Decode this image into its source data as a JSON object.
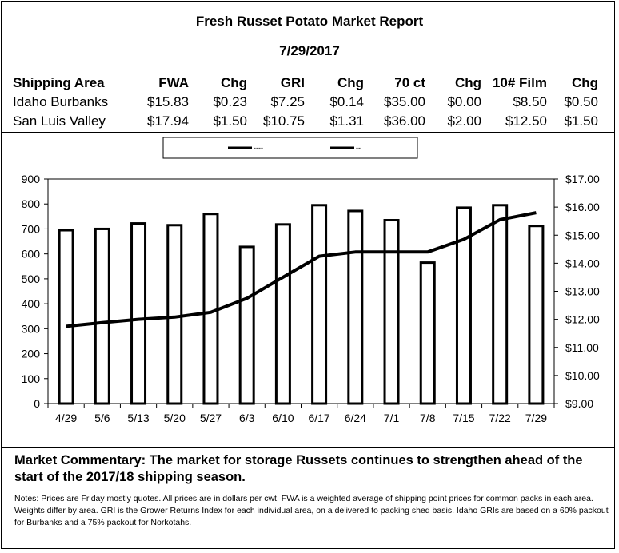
{
  "report": {
    "title": "Fresh Russet Potato Market Report",
    "date": "7/29/2017"
  },
  "price_table": {
    "headers": [
      "Shipping Area",
      "FWA",
      "Chg",
      "GRI",
      "Chg",
      "70 ct",
      "Chg",
      "10# Film",
      "Chg"
    ],
    "rows": [
      [
        "Idaho Burbanks",
        "$15.83",
        "$0.23",
        "$7.25",
        "$0.14",
        "$35.00",
        "$0.00",
        "$8.50",
        "$0.50"
      ],
      [
        "San Luis Valley",
        "$17.94",
        "$1.50",
        "$10.75",
        "$1.31",
        "$36.00",
        "$2.00",
        "$12.50",
        "$1.50"
      ]
    ]
  },
  "chart_data": {
    "type": "bar",
    "categories": [
      "4/29",
      "5/6",
      "5/13",
      "5/20",
      "5/27",
      "6/3",
      "6/10",
      "6/17",
      "6/24",
      "7/1",
      "7/8",
      "7/15",
      "7/22",
      "7/29"
    ],
    "series": [
      {
        "type": "bar",
        "axis": "left",
        "values": [
          695,
          700,
          722,
          715,
          760,
          628,
          718,
          795,
          772,
          735,
          565,
          785,
          795,
          712
        ],
        "color": "#000000"
      },
      {
        "type": "line",
        "axis": "right",
        "values": [
          11.75,
          11.88,
          12.0,
          12.08,
          12.25,
          12.75,
          13.5,
          14.25,
          14.4,
          14.4,
          14.4,
          14.85,
          15.55,
          15.8
        ],
        "color": "#000000"
      }
    ],
    "legend": {
      "entries": [
        {
          "label": "----"
        },
        {
          "label": "--"
        }
      ],
      "placement": "top-center"
    },
    "y_left": {
      "ylim": [
        0,
        900
      ],
      "ticks": [
        "0",
        "100",
        "200",
        "300",
        "400",
        "500",
        "600",
        "700",
        "800",
        "900"
      ]
    },
    "y_right": {
      "ylim": [
        9.0,
        17.0
      ],
      "ticks": [
        "$9.00",
        "$10.00",
        "$11.00",
        "$12.00",
        "$13.00",
        "$14.00",
        "$15.00",
        "$16.00",
        "$17.00"
      ]
    },
    "grid": false
  },
  "commentary": "Market Commentary: The market for storage Russets continues to strengthen ahead of the start of the 2017/18 shipping season.",
  "notes": "Notes: Prices are Friday mostly quotes. All prices are in dollars per cwt. FWA is a weighted average of shipping point prices for  common packs in each area. Weights differ by area. GRI is the Grower Returns Index for each individual area, on a delivered to packing shed basis. Idaho GRIs are based on a 60% packout for Burbanks and a 75% packout for Norkotahs."
}
